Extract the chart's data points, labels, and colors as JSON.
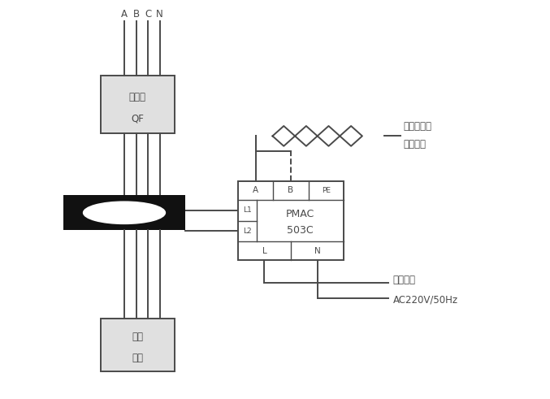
{
  "bg_color": "#ffffff",
  "line_color": "#4a4a4a",
  "black_color": "#111111",
  "fig_width": 6.77,
  "fig_height": 4.91,
  "dpi": 100,
  "labels": {
    "abcn": [
      "A",
      "B",
      "C",
      "N"
    ],
    "breaker": "断路器",
    "breaker_sub": "QF",
    "device": "用电",
    "device_sub": "设备",
    "pmac_line1": "PMAC",
    "pmac_line2": "503C",
    "to_monitor_line1": "至电气火灾",
    "to_monitor_line2": "监控主机",
    "power_line1": "工作电源",
    "power_line2": "AC220V/50Hz",
    "L1": "L1",
    "L2": "L2",
    "A_term": "A",
    "B_term": "B",
    "PE_term": "PE",
    "L_term": "L",
    "N_term": "N"
  }
}
